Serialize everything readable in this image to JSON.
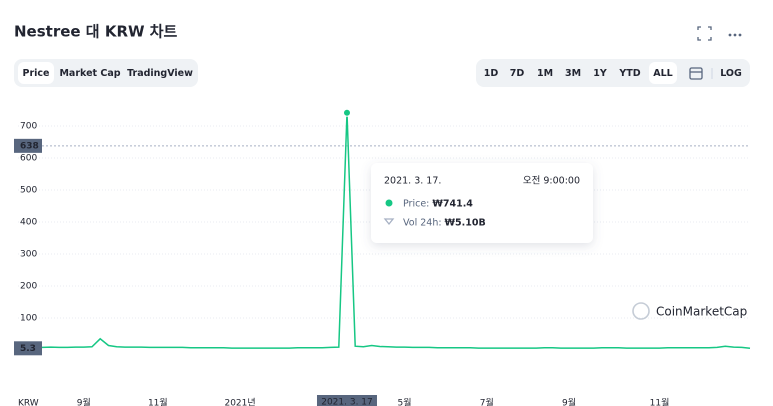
{
  "header": {
    "title": "Nestree 대 KRW 차트"
  },
  "toolbar": {
    "tabs": [
      "Price",
      "Market Cap",
      "TradingView"
    ],
    "active_tab": "Price",
    "ranges": [
      "1D",
      "7D",
      "1M",
      "3M",
      "1Y",
      "YTD",
      "ALL"
    ],
    "active_range": "ALL",
    "log": "LOG"
  },
  "chart_data": {
    "type": "line",
    "currency": "KRW",
    "categories": [
      null,
      null,
      null,
      null,
      null,
      null,
      null,
      null,
      "9월",
      null,
      null,
      null,
      null,
      null,
      null,
      null,
      null,
      "11월",
      null,
      null,
      null,
      null,
      null,
      null,
      null,
      null,
      null,
      "2021년",
      null,
      null,
      null,
      null,
      null,
      null,
      null,
      null,
      null,
      null,
      null,
      null,
      null,
      null,
      null,
      null,
      null,
      null,
      null,
      "5월",
      null,
      null,
      null,
      null,
      null,
      null,
      null,
      null,
      null,
      "7월",
      null,
      null,
      null,
      null,
      null,
      null,
      null,
      null,
      null,
      "9월",
      null,
      null,
      null,
      null,
      null,
      null,
      null,
      null,
      null,
      null,
      "11월",
      null,
      null,
      null,
      null,
      null,
      null,
      null,
      null,
      null,
      null,
      null
    ],
    "series": [
      {
        "name": "Price",
        "color": "#16c784",
        "values": [
          9,
          9,
          8,
          8,
          9,
          8,
          8,
          9,
          9,
          10,
          35,
          14,
          10,
          9,
          9,
          9,
          8,
          8,
          8,
          8,
          8,
          7,
          7,
          7,
          7,
          7,
          6,
          6,
          6,
          6,
          6,
          6,
          6,
          6,
          7,
          7,
          7,
          7,
          8,
          9,
          741.4,
          12,
          10,
          14,
          11,
          10,
          9,
          9,
          8,
          8,
          8,
          7,
          7,
          7,
          7,
          7,
          6,
          6,
          6,
          6,
          6,
          6,
          6,
          6,
          7,
          7,
          6,
          6,
          6,
          6,
          6,
          7,
          7,
          7,
          6,
          6,
          6,
          6,
          6,
          7,
          7,
          7,
          7,
          7,
          7,
          8,
          12,
          9,
          8,
          5.3
        ]
      }
    ],
    "ylim": [
      -60,
      800
    ],
    "yticks": [
      100,
      200,
      300,
      400,
      500,
      600,
      700
    ],
    "grid": true,
    "crosshair_y": 638,
    "crosshair_x_label": "2021. 3. 17",
    "current_price": 5.3
  },
  "tooltip": {
    "date": "2021. 3. 17.",
    "time": "오전 9:00:00",
    "price_label": "Price:",
    "price_value": "₩741.4",
    "vol_label": "Vol 24h:",
    "vol_value": "₩5.10B"
  },
  "watermark": "CoinMarketCap"
}
